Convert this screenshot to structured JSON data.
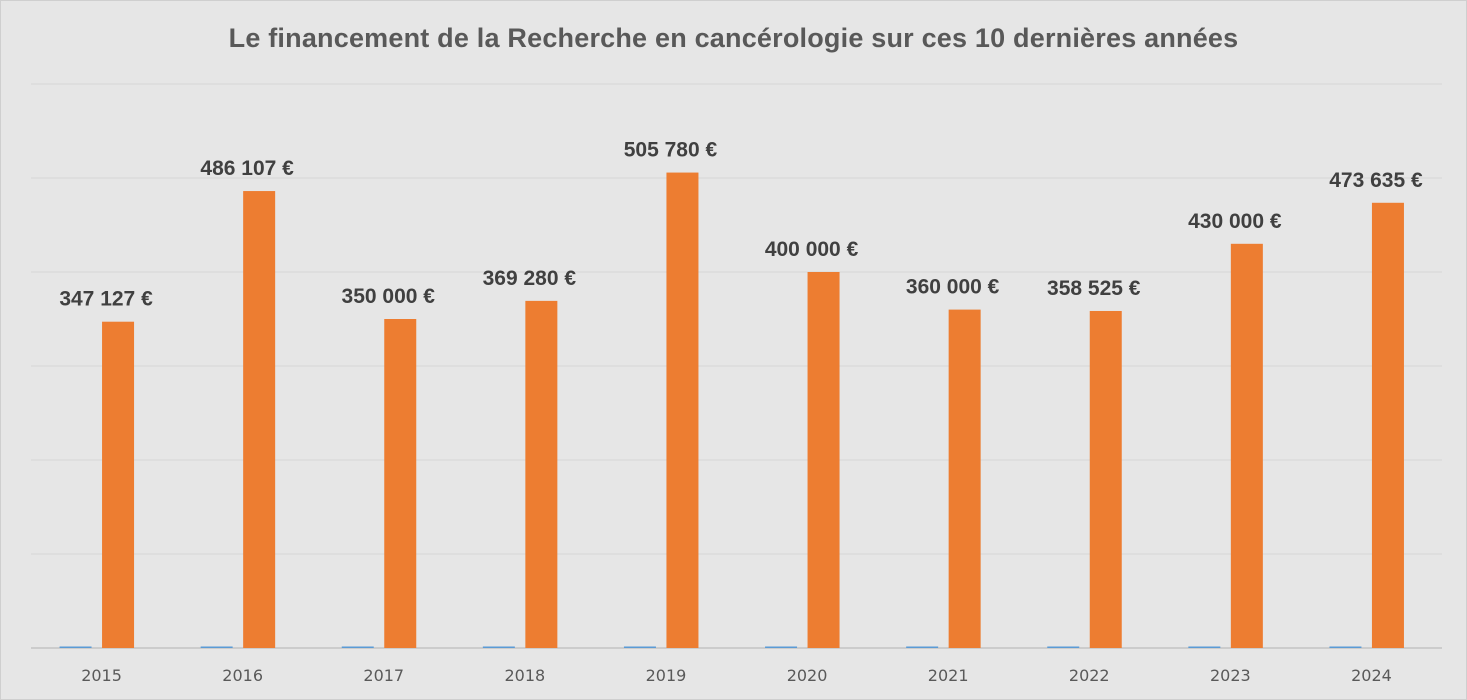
{
  "chart_data": {
    "type": "bar",
    "title": "Le financement de la Recherche en cancérologie sur ces 10 dernières années",
    "xlabel": "",
    "ylabel": "",
    "ylim": [
      0,
      600000
    ],
    "grid": true,
    "categories": [
      "2015",
      "2016",
      "2017",
      "2018",
      "2019",
      "2020",
      "2021",
      "2022",
      "2023",
      "2024"
    ],
    "series": [
      {
        "values": [
          1000,
          1000,
          1000,
          1000,
          1000,
          1000,
          1000,
          1000,
          1000,
          1000
        ],
        "color": "#5b9bd5"
      },
      {
        "values": [
          347127,
          486107,
          350000,
          369280,
          505780,
          400000,
          360000,
          358525,
          430000,
          473635
        ],
        "color": "#ed7d31",
        "labels": [
          "347 127 €",
          "486 107 €",
          "350 000 €",
          "369 280 €",
          "505 780 €",
          "400 000 €",
          "360 000 €",
          "358 525 €",
          "430 000 €",
          "473 635 €"
        ]
      }
    ]
  }
}
